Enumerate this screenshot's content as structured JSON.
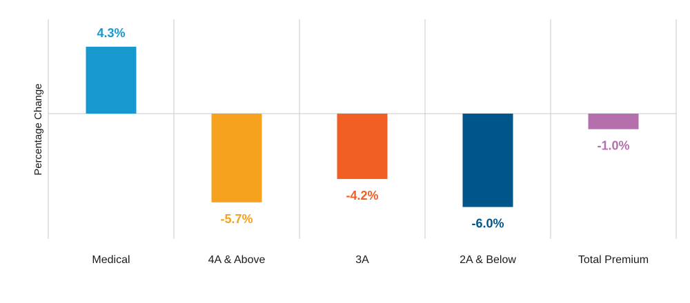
{
  "chart_data": {
    "type": "bar",
    "title": "",
    "xlabel": "",
    "ylabel": "Percentage Change",
    "categories": [
      "Medical",
      "4A & Above",
      "3A",
      "2A & Below",
      "Total Premium"
    ],
    "values": [
      4.3,
      -5.7,
      -4.2,
      -6.0,
      -1.0
    ],
    "data_labels": [
      "4.3%",
      "-5.7%",
      "-4.2%",
      "-6.0%",
      "-1.0%"
    ],
    "colors": [
      "#1799cf",
      "#f6a21e",
      "#f15f24",
      "#00568a",
      "#b56fad"
    ],
    "ylim": [
      -8.1,
      6.1
    ],
    "grid": "vertical separators between categories",
    "legend": "none"
  }
}
